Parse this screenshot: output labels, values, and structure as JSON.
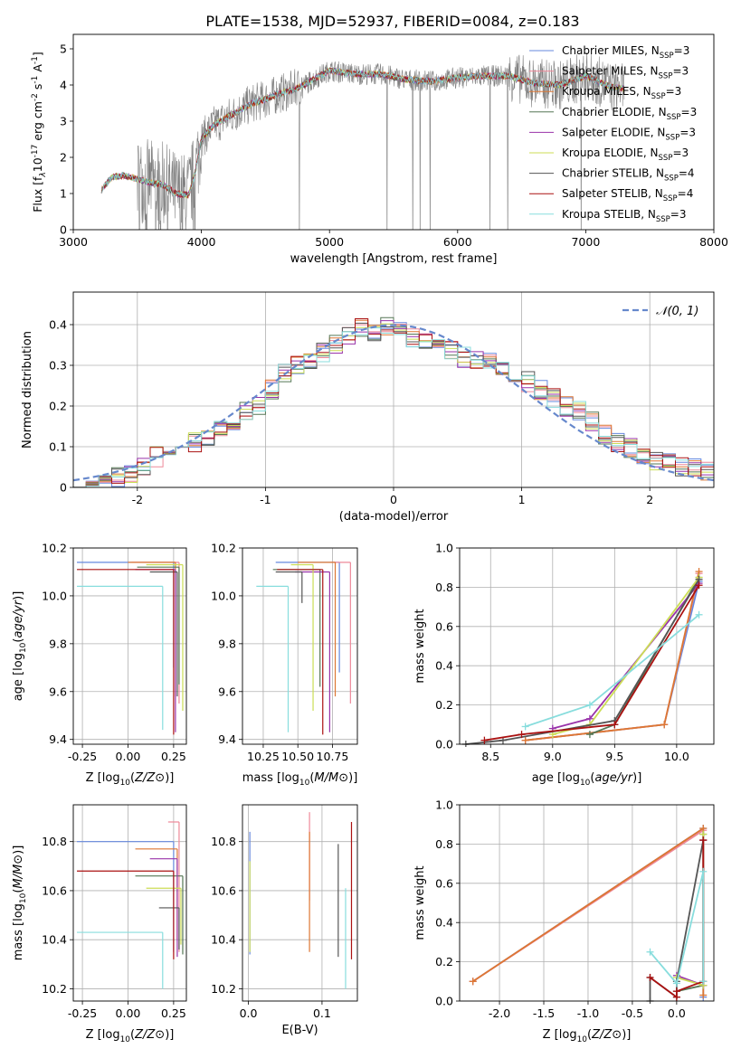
{
  "figure_title": "PLATE=1538, MJD=52937, FIBERID=0084, z=0.183",
  "series_colors": [
    "#6688dd",
    "#ee8899",
    "#dd7733",
    "#557755",
    "#9933aa",
    "#ccdd55",
    "#555555",
    "#aa1111",
    "#88dddd"
  ],
  "chart_data": [
    {
      "type": "line",
      "id": "spectrum",
      "title": "PLATE=1538, MJD=52937, FIBERID=0084, z=0.183",
      "xlabel": "wavelength [Angstrom, rest frame]",
      "ylabel_parts": [
        "Flux [f",
        "λ",
        "10",
        "-17",
        " erg cm",
        "-2",
        " s",
        "-1",
        " A",
        "-1",
        "]"
      ],
      "xlim": [
        3000,
        8000
      ],
      "ylim": [
        0,
        5.4
      ],
      "xticks": [
        3000,
        4000,
        5000,
        6000,
        7000,
        8000
      ],
      "yticks": [
        0,
        1,
        2,
        3,
        4,
        5
      ],
      "data_color": "#808080",
      "legend_position": "top-right",
      "legend": [
        {
          "name": "Chabrier MILES, N",
          "sub": "SSP",
          "tail": "=3"
        },
        {
          "name": "Salpeter MILES, N",
          "sub": "SSP",
          "tail": "=3"
        },
        {
          "name": "Kroupa MILES, N",
          "sub": "SSP",
          "tail": "=3"
        },
        {
          "name": "Chabrier ELODIE, N",
          "sub": "SSP",
          "tail": "=3"
        },
        {
          "name": "Salpeter ELODIE, N",
          "sub": "SSP",
          "tail": "=3"
        },
        {
          "name": "Kroupa ELODIE, N",
          "sub": "SSP",
          "tail": "=3"
        },
        {
          "name": "Chabrier STELIB, N",
          "sub": "SSP",
          "tail": "=4"
        },
        {
          "name": "Salpeter STELIB, N",
          "sub": "SSP",
          "tail": "=4"
        },
        {
          "name": "Kroupa STELIB, N",
          "sub": "SSP",
          "tail": "=3"
        }
      ],
      "continuum": {
        "x": [
          3220,
          3300,
          3400,
          3500,
          3600,
          3700,
          3800,
          3900,
          3950,
          4000,
          4100,
          4200,
          4300,
          4400,
          4500,
          4600,
          4700,
          4800,
          4900,
          5000,
          5200,
          5400,
          5600,
          5800,
          6000,
          6200,
          6400,
          6600,
          6800,
          7000,
          7200,
          7300
        ],
        "y": [
          1.1,
          1.45,
          1.5,
          1.4,
          1.3,
          1.25,
          1.0,
          0.95,
          1.55,
          2.5,
          2.9,
          3.1,
          3.3,
          3.5,
          3.6,
          3.75,
          3.85,
          4.0,
          4.2,
          4.4,
          4.3,
          4.3,
          4.15,
          4.1,
          4.2,
          4.25,
          4.25,
          4.05,
          4.0,
          4.25,
          3.95,
          3.9
        ]
      }
    },
    {
      "type": "line",
      "id": "residuals",
      "xlabel": "(data-model)/error",
      "ylabel": "Normed distribution",
      "xlim": [
        -2.5,
        2.5
      ],
      "ylim": [
        0,
        0.48
      ],
      "xticks": [
        -2,
        -1,
        0,
        1,
        2
      ],
      "yticks": [
        0.0,
        0.1,
        0.2,
        0.3,
        0.4
      ],
      "legend_position": "top-right",
      "legend": [
        "𝒩(0, 1)"
      ],
      "bin_centers": [
        -2.45,
        -2.35,
        -2.25,
        -2.15,
        -2.05,
        -1.95,
        -1.85,
        -1.75,
        -1.65,
        -1.55,
        -1.45,
        -1.35,
        -1.25,
        -1.15,
        -1.05,
        -0.95,
        -0.85,
        -0.75,
        -0.65,
        -0.55,
        -0.45,
        -0.35,
        -0.25,
        -0.15,
        -0.05,
        0.05,
        0.15,
        0.25,
        0.35,
        0.45,
        0.55,
        0.65,
        0.75,
        0.85,
        0.95,
        1.05,
        1.15,
        1.25,
        1.35,
        1.45,
        1.55,
        1.65,
        1.75,
        1.85,
        1.95,
        2.05,
        2.15,
        2.25,
        2.35,
        2.45
      ],
      "hist_mean": [
        0.025,
        0.018,
        0.02,
        0.025,
        0.035,
        0.055,
        0.075,
        0.09,
        0.1,
        0.11,
        0.12,
        0.14,
        0.16,
        0.19,
        0.2,
        0.24,
        0.28,
        0.3,
        0.31,
        0.33,
        0.35,
        0.37,
        0.39,
        0.38,
        0.4,
        0.39,
        0.37,
        0.36,
        0.34,
        0.34,
        0.32,
        0.31,
        0.31,
        0.3,
        0.28,
        0.26,
        0.24,
        0.22,
        0.2,
        0.19,
        0.16,
        0.13,
        0.11,
        0.095,
        0.075,
        0.065,
        0.06,
        0.05,
        0.045,
        0.04
      ]
    },
    {
      "type": "scatter",
      "id": "age-vs-Z",
      "xlabel": "Z [log10(Z/Z⊙)]",
      "ylabel": "age  [log10(age/yr)]",
      "xlim": [
        -0.3,
        0.32
      ],
      "ylim": [
        9.38,
        10.2
      ],
      "xticks": [
        "-0.25",
        "0.00",
        "0.25"
      ],
      "yticks": [
        "9.4",
        "9.6",
        "9.8",
        "10.0",
        "10.2"
      ],
      "points": [
        {
          "x": 0.25,
          "y": 10.14,
          "xlo": -0.28,
          "ylo": 9.7
        },
        {
          "x": 0.28,
          "y": 10.14,
          "xlo": 0.02,
          "ylo": 9.55
        },
        {
          "x": 0.26,
          "y": 10.14,
          "xlo": 0.0,
          "ylo": 9.58
        },
        {
          "x": 0.28,
          "y": 10.12,
          "xlo": 0.05,
          "ylo": 9.63
        },
        {
          "x": 0.26,
          "y": 10.11,
          "xlo": 0.04,
          "ylo": 9.43
        },
        {
          "x": 0.3,
          "y": 10.13,
          "xlo": 0.1,
          "ylo": 9.52
        },
        {
          "x": 0.27,
          "y": 10.1,
          "xlo": 0.12,
          "ylo": 9.58
        },
        {
          "x": 0.25,
          "y": 10.11,
          "xlo": -0.28,
          "ylo": 9.42
        },
        {
          "x": 0.19,
          "y": 10.04,
          "xlo": -0.28,
          "ylo": 9.44
        }
      ]
    },
    {
      "type": "scatter",
      "id": "age-vs-mass",
      "xlabel": "mass [log10(M/M⊙)]",
      "ylabel": "",
      "xlim": [
        10.1,
        10.93
      ],
      "ylim": [
        9.38,
        10.2
      ],
      "xticks": [
        "10.25",
        "10.50",
        "10.75"
      ],
      "yticks": [
        "9.4",
        "9.6",
        "9.8",
        "10.0",
        "10.2"
      ],
      "points": [
        {
          "x": 10.8,
          "y": 10.14,
          "xlo": 10.34,
          "ylo": 9.68
        },
        {
          "x": 10.88,
          "y": 10.14,
          "xlo": 10.74,
          "ylo": 9.55
        },
        {
          "x": 10.77,
          "y": 10.14,
          "xlo": 10.5,
          "ylo": 9.58
        },
        {
          "x": 10.66,
          "y": 10.11,
          "xlo": 10.32,
          "ylo": 9.62
        },
        {
          "x": 10.73,
          "y": 10.1,
          "xlo": 10.48,
          "ylo": 9.43
        },
        {
          "x": 10.61,
          "y": 10.13,
          "xlo": 10.45,
          "ylo": 9.52
        },
        {
          "x": 10.53,
          "y": 10.1,
          "xlo": 10.34,
          "ylo": 9.97
        },
        {
          "x": 10.68,
          "y": 10.11,
          "xlo": 10.35,
          "ylo": 9.42
        },
        {
          "x": 10.43,
          "y": 10.04,
          "xlo": 10.2,
          "ylo": 9.43
        }
      ]
    },
    {
      "type": "line",
      "id": "mass-weight-vs-age",
      "xlabel": "age  [log10(age/yr)]",
      "ylabel": "mass weight",
      "xlim": [
        8.25,
        10.3
      ],
      "ylim": [
        0,
        1.0
      ],
      "xticks": [
        "8.5",
        "9.0",
        "9.5",
        "10.0"
      ],
      "yticks": [
        "0.0",
        "0.2",
        "0.4",
        "0.6",
        "0.8",
        "1.0"
      ],
      "series": [
        {
          "x": [
            8.78,
            9.9,
            10.18
          ],
          "y": [
            0.02,
            0.1,
            0.83
          ]
        },
        {
          "x": [
            8.78,
            9.9,
            10.18
          ],
          "y": [
            0.02,
            0.1,
            0.87
          ]
        },
        {
          "x": [
            8.78,
            9.9,
            10.18
          ],
          "y": [
            0.02,
            0.1,
            0.88
          ]
        },
        {
          "x": [
            9.3,
            9.5,
            10.18
          ],
          "y": [
            0.05,
            0.1,
            0.85
          ]
        },
        {
          "x": [
            9.0,
            9.3,
            10.18
          ],
          "y": [
            0.08,
            0.13,
            0.82
          ]
        },
        {
          "x": [
            9.0,
            9.3,
            10.18
          ],
          "y": [
            0.05,
            0.1,
            0.85
          ]
        },
        {
          "x": [
            8.3,
            8.6,
            9.5,
            10.18
          ],
          "y": [
            0.0,
            0.02,
            0.12,
            0.84
          ]
        },
        {
          "x": [
            8.45,
            8.75,
            9.5,
            10.18
          ],
          "y": [
            0.02,
            0.05,
            0.1,
            0.81
          ]
        },
        {
          "x": [
            8.78,
            9.3,
            10.18
          ],
          "y": [
            0.09,
            0.2,
            0.66
          ]
        }
      ]
    },
    {
      "type": "scatter",
      "id": "mass-vs-Z",
      "xlabel": "Z [log10(Z/Z⊙)]",
      "ylabel": "mass [log10(M/M⊙)]",
      "xlim": [
        -0.3,
        0.32
      ],
      "ylim": [
        10.15,
        10.95
      ],
      "xticks": [
        "-0.25",
        "0.00",
        "0.25"
      ],
      "yticks": [
        "10.2",
        "10.4",
        "10.6",
        "10.8"
      ],
      "points": [
        {
          "x": 0.25,
          "y": 10.8,
          "xlo": -0.28,
          "ylo": 10.35
        },
        {
          "x": 0.28,
          "y": 10.88,
          "xlo": 0.22,
          "ylo": 10.35
        },
        {
          "x": 0.27,
          "y": 10.77,
          "xlo": 0.04,
          "ylo": 10.4
        },
        {
          "x": 0.3,
          "y": 10.66,
          "xlo": 0.04,
          "ylo": 10.34
        },
        {
          "x": 0.27,
          "y": 10.73,
          "xlo": 0.12,
          "ylo": 10.33
        },
        {
          "x": 0.29,
          "y": 10.61,
          "xlo": 0.1,
          "ylo": 10.38
        },
        {
          "x": 0.28,
          "y": 10.53,
          "xlo": 0.17,
          "ylo": 10.36
        },
        {
          "x": 0.25,
          "y": 10.68,
          "xlo": -0.28,
          "ylo": 10.32
        },
        {
          "x": 0.19,
          "y": 10.43,
          "xlo": -0.28,
          "ylo": 10.2
        }
      ]
    },
    {
      "type": "scatter",
      "id": "mass-vs-EBV",
      "xlabel": "E(B-V)",
      "ylabel": "",
      "xlim": [
        -0.008,
        0.148
      ],
      "ylim": [
        10.15,
        10.95
      ],
      "xticks": [
        "0.0",
        "0.1"
      ],
      "yticks": [
        "10.2",
        "10.4",
        "10.6",
        "10.8"
      ],
      "points": [
        {
          "x": 0.002,
          "ylo": 10.34,
          "yhi": 10.84
        },
        {
          "x": 0.083,
          "ylo": 10.56,
          "yhi": 10.92
        },
        {
          "x": 0.083,
          "ylo": 10.35,
          "yhi": 10.84
        },
        {
          "x": 0.002,
          "ylo": 10.35,
          "yhi": 10.72
        },
        {
          "x": 0.122,
          "ylo": 10.33,
          "yhi": 10.79
        },
        {
          "x": 0.14,
          "ylo": 10.32,
          "yhi": 10.88
        },
        {
          "x": 0.132,
          "ylo": 10.2,
          "yhi": 10.61
        }
      ]
    },
    {
      "type": "line",
      "id": "mass-weight-vs-Z",
      "xlabel": "Z [log10(Z/Z⊙)]",
      "ylabel": "mass weight",
      "xlim": [
        -2.45,
        0.42
      ],
      "ylim": [
        0,
        1.0
      ],
      "xticks": [
        "-2.0",
        "-1.5",
        "-1.0",
        "-0.5",
        "0.0"
      ],
      "yticks": [
        "0.0",
        "0.2",
        "0.4",
        "0.6",
        "0.8",
        "1.0"
      ],
      "series": [
        {
          "x": [
            -2.3,
            0.3,
            0.3
          ],
          "y": [
            0.1,
            0.88,
            0.02
          ]
        },
        {
          "x": [
            -2.3,
            0.3
          ],
          "y": [
            0.1,
            0.87
          ]
        },
        {
          "x": [
            -2.3,
            0.3,
            0.3
          ],
          "y": [
            0.1,
            0.88,
            0.03
          ]
        },
        {
          "x": [
            0.0,
            0.3,
            0.3
          ],
          "y": [
            0.05,
            0.08,
            0.85
          ]
        },
        {
          "x": [
            0.0,
            0.3,
            0.3
          ],
          "y": [
            0.13,
            0.08,
            0.82
          ]
        },
        {
          "x": [
            0.0,
            0.3,
            0.3
          ],
          "y": [
            0.12,
            0.08,
            0.85
          ]
        },
        {
          "x": [
            -0.3,
            -0.3,
            0.0,
            0.0,
            0.3
          ],
          "y": [
            0.0,
            0.12,
            0.02,
            0.1,
            0.82
          ]
        },
        {
          "x": [
            -0.3,
            0.0,
            0.0,
            0.3,
            0.3
          ],
          "y": [
            0.12,
            0.02,
            0.05,
            0.1,
            0.82
          ]
        },
        {
          "x": [
            -0.3,
            0.0,
            0.3,
            0.3
          ],
          "y": [
            0.25,
            0.09,
            0.66,
            0.1
          ]
        }
      ]
    }
  ]
}
